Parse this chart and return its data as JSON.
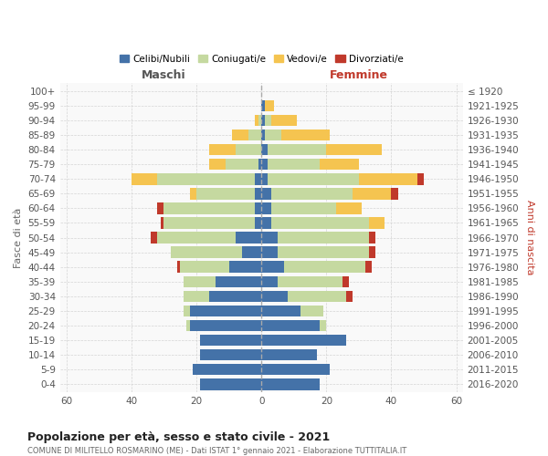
{
  "age_groups": [
    "0-4",
    "5-9",
    "10-14",
    "15-19",
    "20-24",
    "25-29",
    "30-34",
    "35-39",
    "40-44",
    "45-49",
    "50-54",
    "55-59",
    "60-64",
    "65-69",
    "70-74",
    "75-79",
    "80-84",
    "85-89",
    "90-94",
    "95-99",
    "100+"
  ],
  "birth_years": [
    "2016-2020",
    "2011-2015",
    "2006-2010",
    "2001-2005",
    "1996-2000",
    "1991-1995",
    "1986-1990",
    "1981-1985",
    "1976-1980",
    "1971-1975",
    "1966-1970",
    "1961-1965",
    "1956-1960",
    "1951-1955",
    "1946-1950",
    "1941-1945",
    "1936-1940",
    "1931-1935",
    "1926-1930",
    "1921-1925",
    "≤ 1920"
  ],
  "males": {
    "celibe": [
      19,
      21,
      19,
      19,
      22,
      22,
      16,
      14,
      10,
      6,
      8,
      2,
      2,
      2,
      2,
      1,
      0,
      0,
      0,
      0,
      0
    ],
    "coniugato": [
      0,
      0,
      0,
      0,
      1,
      2,
      8,
      10,
      15,
      22,
      24,
      28,
      28,
      18,
      30,
      10,
      8,
      4,
      1,
      0,
      0
    ],
    "vedovo": [
      0,
      0,
      0,
      0,
      0,
      0,
      0,
      0,
      0,
      0,
      0,
      0,
      0,
      2,
      8,
      5,
      8,
      5,
      1,
      0,
      0
    ],
    "divorziato": [
      0,
      0,
      0,
      0,
      0,
      0,
      0,
      0,
      1,
      0,
      2,
      1,
      2,
      0,
      0,
      0,
      0,
      0,
      0,
      0,
      0
    ]
  },
  "females": {
    "nubile": [
      18,
      21,
      17,
      26,
      18,
      12,
      8,
      5,
      7,
      5,
      5,
      3,
      3,
      3,
      2,
      2,
      2,
      1,
      1,
      1,
      0
    ],
    "coniugata": [
      0,
      0,
      0,
      0,
      2,
      7,
      18,
      20,
      25,
      28,
      28,
      30,
      20,
      25,
      28,
      16,
      18,
      5,
      2,
      0,
      0
    ],
    "vedova": [
      0,
      0,
      0,
      0,
      0,
      0,
      0,
      0,
      0,
      0,
      0,
      5,
      8,
      12,
      18,
      12,
      17,
      15,
      8,
      3,
      0
    ],
    "divorziata": [
      0,
      0,
      0,
      0,
      0,
      0,
      2,
      2,
      2,
      2,
      2,
      0,
      0,
      2,
      2,
      0,
      0,
      0,
      0,
      0,
      0
    ]
  },
  "colors": {
    "celibe": "#4472a8",
    "coniugato": "#c5d9a0",
    "vedovo": "#f5c450",
    "divorziato": "#c0392b"
  },
  "title": "Popolazione per età, sesso e stato civile - 2021",
  "subtitle": "COMUNE DI MILITELLO ROSMARINO (ME) - Dati ISTAT 1° gennaio 2021 - Elaborazione TUTTITALIA.IT",
  "xlabel_left": "Maschi",
  "xlabel_right": "Femmine",
  "ylabel_left": "Fasce di età",
  "ylabel_right": "Anni di nascita",
  "xlim": 62,
  "bg_color": "#f9f9f9",
  "grid_color": "#cccccc",
  "legend_labels": [
    "Celibi/Nubili",
    "Coniugati/e",
    "Vedovi/e",
    "Divorziati/e"
  ]
}
